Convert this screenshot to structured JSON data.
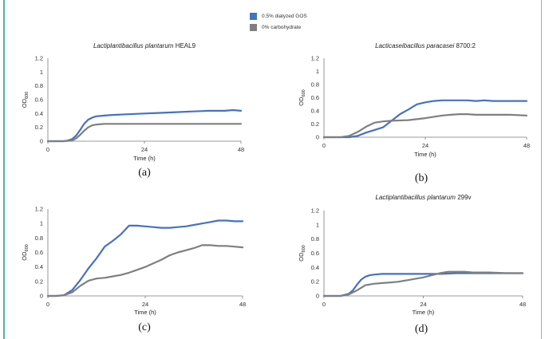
{
  "legend": {
    "items": [
      {
        "label": "0.5% dialyzed GOS",
        "color": "#4472c4"
      },
      {
        "label": "0% carbohydrate",
        "color": "#7f7f7f"
      }
    ]
  },
  "panel_letters": [
    "(a)",
    "(b)",
    "(c)",
    "(d)"
  ],
  "chart_data": [
    {
      "type": "line",
      "title_species": "Lactiplantibacillus plantarum",
      "title_strain": "HEAL9",
      "ylabel_main": "OD",
      "ylabel_sub": "600",
      "xlabel": "Time (h)",
      "xlim": [
        0,
        48
      ],
      "ylim": [
        0,
        1.2
      ],
      "xticks": [
        "0",
        "24",
        "48"
      ],
      "yticks": [
        "0",
        "0.2",
        "0.4",
        "0.6",
        "0.8",
        "1",
        "1.2"
      ],
      "series": [
        {
          "name": "0.5% dialyzed GOS",
          "color": "#4472c4",
          "x": [
            0,
            2,
            4,
            5,
            6,
            7,
            8,
            9,
            10,
            11,
            12,
            14,
            16,
            20,
            24,
            28,
            32,
            36,
            40,
            44,
            46,
            48
          ],
          "y": [
            0,
            0,
            0,
            0.01,
            0.03,
            0.08,
            0.16,
            0.25,
            0.31,
            0.34,
            0.36,
            0.37,
            0.38,
            0.39,
            0.4,
            0.41,
            0.42,
            0.43,
            0.44,
            0.44,
            0.45,
            0.44
          ]
        },
        {
          "name": "0% carbohydrate",
          "color": "#7f7f7f",
          "x": [
            0,
            2,
            4,
            6,
            7,
            8,
            9,
            10,
            11,
            12,
            14,
            16,
            20,
            24,
            28,
            32,
            36,
            40,
            44,
            48
          ],
          "y": [
            0,
            0,
            0,
            0.01,
            0.04,
            0.09,
            0.15,
            0.2,
            0.23,
            0.24,
            0.25,
            0.25,
            0.25,
            0.25,
            0.25,
            0.25,
            0.25,
            0.25,
            0.25,
            0.25
          ]
        }
      ]
    },
    {
      "type": "line",
      "title_species": "Lacticaseibacillus paracasei",
      "title_strain": "8700:2",
      "ylabel_main": "OD",
      "ylabel_sub": "600",
      "xlabel": "Time (h)",
      "xlim": [
        0,
        48
      ],
      "ylim": [
        0,
        1.2
      ],
      "xticks": [
        "0",
        "24",
        "48"
      ],
      "yticks": [
        "0",
        "0.2",
        "0.4",
        "0.6",
        "0.8",
        "1",
        "1.2"
      ],
      "series": [
        {
          "name": "0.5% dialyzed GOS",
          "color": "#4472c4",
          "x": [
            0,
            4,
            6,
            8,
            10,
            12,
            14,
            16,
            18,
            20,
            22,
            24,
            26,
            28,
            30,
            32,
            34,
            36,
            38,
            40,
            44,
            48
          ],
          "y": [
            0,
            0,
            0,
            0.02,
            0.07,
            0.11,
            0.15,
            0.25,
            0.35,
            0.42,
            0.5,
            0.53,
            0.55,
            0.56,
            0.56,
            0.56,
            0.56,
            0.55,
            0.56,
            0.55,
            0.55,
            0.55
          ]
        },
        {
          "name": "0% carbohydrate",
          "color": "#7f7f7f",
          "x": [
            0,
            4,
            6,
            8,
            10,
            12,
            14,
            16,
            20,
            24,
            28,
            30,
            32,
            34,
            36,
            40,
            44,
            48
          ],
          "y": [
            0,
            0,
            0.02,
            0.08,
            0.16,
            0.22,
            0.24,
            0.25,
            0.26,
            0.29,
            0.33,
            0.34,
            0.35,
            0.35,
            0.34,
            0.34,
            0.34,
            0.33
          ]
        }
      ]
    },
    {
      "type": "line",
      "title_species": "",
      "title_strain": "",
      "ylabel_main": "OD",
      "ylabel_sub": "600",
      "xlabel": "Time (h)",
      "xlim": [
        0,
        48
      ],
      "ylim": [
        0,
        1.2
      ],
      "xticks": [
        "0",
        "24",
        "48"
      ],
      "yticks": [
        "0",
        "0.2",
        "0.4",
        "0.6",
        "0.8",
        "1",
        "1.2"
      ],
      "series": [
        {
          "name": "0.5% dialyzed GOS",
          "color": "#4472c4",
          "x": [
            0,
            2,
            4,
            6,
            8,
            10,
            12,
            14,
            16,
            18,
            20,
            22,
            24,
            26,
            28,
            30,
            32,
            34,
            36,
            38,
            40,
            42,
            44,
            46,
            48
          ],
          "y": [
            0,
            0,
            0.01,
            0.08,
            0.22,
            0.38,
            0.52,
            0.68,
            0.76,
            0.85,
            0.97,
            0.97,
            0.96,
            0.95,
            0.94,
            0.94,
            0.95,
            0.96,
            0.98,
            1.0,
            1.02,
            1.04,
            1.04,
            1.03,
            1.03
          ]
        },
        {
          "name": "0% carbohydrate",
          "color": "#7f7f7f",
          "x": [
            0,
            2,
            4,
            6,
            8,
            10,
            12,
            14,
            16,
            18,
            20,
            22,
            24,
            26,
            28,
            30,
            32,
            34,
            36,
            38,
            40,
            42,
            44,
            46,
            48
          ],
          "y": [
            0,
            0,
            0.01,
            0.05,
            0.14,
            0.21,
            0.24,
            0.25,
            0.27,
            0.29,
            0.32,
            0.36,
            0.4,
            0.45,
            0.5,
            0.56,
            0.6,
            0.63,
            0.66,
            0.7,
            0.7,
            0.69,
            0.69,
            0.68,
            0.67
          ]
        }
      ]
    },
    {
      "type": "line",
      "title_species": "Lactiplantibacillus plantarum",
      "title_strain": "299v",
      "ylabel_main": "OD",
      "ylabel_sub": "600",
      "xlabel": "Time (h)",
      "xlim": [
        0,
        48
      ],
      "ylim": [
        0,
        1.2
      ],
      "xticks": [
        "0",
        "24",
        "48"
      ],
      "yticks": [
        "0",
        "0.2",
        "0.4",
        "0.6",
        "0.8",
        "1",
        "1.2"
      ],
      "series": [
        {
          "name": "0.5% dialyzed GOS",
          "color": "#4472c4",
          "x": [
            0,
            2,
            4,
            6,
            7,
            8,
            9,
            10,
            11,
            12,
            14,
            16,
            20,
            24,
            28,
            32,
            36,
            40,
            44,
            48
          ],
          "y": [
            0,
            0,
            0,
            0.03,
            0.08,
            0.16,
            0.23,
            0.27,
            0.29,
            0.3,
            0.31,
            0.31,
            0.31,
            0.31,
            0.31,
            0.32,
            0.32,
            0.32,
            0.32,
            0.32
          ]
        },
        {
          "name": "0% carbohydrate",
          "color": "#7f7f7f",
          "x": [
            0,
            2,
            4,
            6,
            8,
            10,
            12,
            14,
            16,
            18,
            20,
            22,
            24,
            26,
            28,
            30,
            32,
            34,
            36,
            40,
            44,
            48
          ],
          "y": [
            0,
            0,
            0,
            0.02,
            0.08,
            0.15,
            0.17,
            0.18,
            0.19,
            0.2,
            0.22,
            0.24,
            0.26,
            0.29,
            0.32,
            0.34,
            0.34,
            0.34,
            0.33,
            0.33,
            0.32,
            0.32
          ]
        }
      ]
    }
  ]
}
